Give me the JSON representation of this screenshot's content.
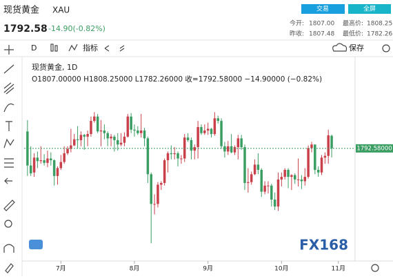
{
  "header": {
    "name": "现货黄金",
    "symbol": "XAU",
    "price": "1792.58",
    "change": "-14.90(-0.82%)",
    "buttons": [
      "交易",
      "全屏"
    ],
    "stats": [
      {
        "label": "今开:",
        "value": "1807.00"
      },
      {
        "label": "最高价:",
        "value": "1808.25"
      },
      {
        "label": "昨收:",
        "value": "1807.48"
      },
      {
        "label": "最低价:",
        "value": "1782.26"
      }
    ]
  },
  "toolbar": {
    "interval": "D",
    "indicators": "指标",
    "save": "保存"
  },
  "chart_data": {
    "type": "candlestick",
    "title": "现货黄金, 1D",
    "legend_text": "O1807.00000  H1808.25000  L1782.26000  收=1792.58000  −14.90000 (−0.82%)",
    "categories": [
      null,
      null,
      null,
      null,
      null,
      null,
      null,
      null,
      null,
      null,
      null,
      null,
      null,
      null,
      null,
      null,
      null,
      null,
      null,
      null,
      null,
      null,
      null,
      null,
      null,
      null,
      null,
      null,
      null,
      null,
      null,
      null,
      null,
      null,
      null,
      null,
      null,
      null,
      null,
      null,
      null,
      null,
      null,
      null,
      null,
      null,
      null,
      null,
      null,
      null,
      null,
      null,
      null,
      null,
      null,
      null,
      null,
      null,
      null,
      null,
      null,
      null,
      null,
      null,
      null,
      null,
      null,
      null,
      null,
      null,
      null,
      null,
      null,
      null,
      null,
      null,
      null,
      null,
      null,
      null,
      null,
      null,
      null,
      null,
      null,
      null,
      null,
      null,
      null,
      null,
      null,
      null
    ],
    "open": [
      1812,
      1773,
      1765,
      1782,
      1778,
      1779,
      1776,
      1781,
      1779,
      1761,
      1770,
      1777,
      1787,
      1792,
      1796,
      1803,
      1802,
      1808,
      1806,
      1809,
      1824,
      1829,
      1812,
      1813,
      1810,
      1804,
      1806,
      1802,
      1797,
      1799,
      1806,
      1829,
      1814,
      1813,
      1810,
      1813,
      1804,
      1763,
      1729,
      1729,
      1751,
      1753,
      1779,
      1787,
      1786,
      1787,
      1781,
      1781,
      1805,
      1802,
      1790,
      1794,
      1817,
      1810,
      1813,
      1815,
      1809,
      1827,
      1824,
      1795,
      1789,
      1795,
      1788,
      1794,
      1804,
      1794,
      1753,
      1754,
      1763,
      1774,
      1768,
      1743,
      1750,
      1750,
      1734,
      1726,
      1757,
      1760,
      1768,
      1760,
      1762,
      1757,
      1757,
      1755,
      1760,
      1793,
      1797,
      1768,
      1765,
      1782,
      1784,
      1807
    ],
    "high": [
      1825,
      1795,
      1787,
      1789,
      1795,
      1786,
      1790,
      1788,
      1780,
      1772,
      1785,
      1795,
      1795,
      1815,
      1809,
      1818,
      1812,
      1809,
      1813,
      1829,
      1834,
      1832,
      1825,
      1820,
      1812,
      1809,
      1808,
      1810,
      1810,
      1811,
      1832,
      1833,
      1820,
      1818,
      1832,
      1816,
      1806,
      1765,
      1740,
      1754,
      1755,
      1781,
      1789,
      1796,
      1794,
      1789,
      1785,
      1809,
      1810,
      1805,
      1797,
      1824,
      1820,
      1820,
      1822,
      1816,
      1834,
      1830,
      1827,
      1800,
      1801,
      1809,
      1796,
      1808,
      1808,
      1797,
      1770,
      1766,
      1780,
      1787,
      1770,
      1755,
      1755,
      1752,
      1742,
      1765,
      1765,
      1770,
      1770,
      1763,
      1764,
      1781,
      1762,
      1770,
      1796,
      1800,
      1797,
      1772,
      1785,
      1788,
      1814,
      1808.25
    ],
    "low": [
      1761,
      1761,
      1760,
      1770,
      1775,
      1773,
      1771,
      1773,
      1750,
      1751,
      1768,
      1775,
      1785,
      1788,
      1795,
      1793,
      1795,
      1791,
      1795,
      1806,
      1822,
      1810,
      1795,
      1803,
      1795,
      1795,
      1789,
      1790,
      1795,
      1795,
      1805,
      1810,
      1806,
      1808,
      1805,
      1795,
      1753,
      1684,
      1717,
      1725,
      1745,
      1750,
      1765,
      1780,
      1780,
      1772,
      1775,
      1777,
      1800,
      1780,
      1780,
      1781,
      1808,
      1808,
      1808,
      1805,
      1807,
      1821,
      1792,
      1782,
      1785,
      1787,
      1785,
      1780,
      1791,
      1745,
      1742,
      1751,
      1762,
      1763,
      1737,
      1740,
      1741,
      1726,
      1722,
      1721,
      1749,
      1757,
      1747,
      1745,
      1752,
      1749,
      1746,
      1750,
      1758,
      1788,
      1763,
      1760,
      1762,
      1775,
      1775,
      1782.26
    ],
    "close": [
      1773,
      1764,
      1782,
      1778,
      1779,
      1776,
      1781,
      1779,
      1761,
      1770,
      1777,
      1787,
      1792,
      1796,
      1803,
      1802,
      1808,
      1806,
      1809,
      1824,
      1829,
      1812,
      1813,
      1810,
      1804,
      1806,
      1802,
      1797,
      1799,
      1806,
      1829,
      1814,
      1813,
      1810,
      1813,
      1804,
      1763,
      1729,
      1729,
      1751,
      1753,
      1779,
      1787,
      1786,
      1787,
      1781,
      1781,
      1805,
      1802,
      1790,
      1794,
      1817,
      1810,
      1813,
      1815,
      1809,
      1827,
      1824,
      1795,
      1789,
      1795,
      1788,
      1794,
      1804,
      1794,
      1753,
      1754,
      1763,
      1774,
      1768,
      1743,
      1750,
      1750,
      1734,
      1726,
      1757,
      1760,
      1768,
      1760,
      1762,
      1757,
      1757,
      1755,
      1760,
      1793,
      1797,
      1768,
      1765,
      1782,
      1784,
      1807.48,
      1792.58
    ],
    "up_color": "#c9404a",
    "down_color": "#3a9e63",
    "ylim": [
      1670,
      1877
    ],
    "xlim": [
      -1,
      98
    ],
    "xticks": [
      {
        "value": 10,
        "label": "7月"
      },
      {
        "value": 32,
        "label": "8月"
      },
      {
        "value": 54,
        "label": "9月"
      },
      {
        "value": 76,
        "label": "10月"
      },
      {
        "value": 93,
        "label": "11月"
      }
    ],
    "last_price": {
      "value": 1792.58,
      "label": "1792.58000"
    },
    "watermark": "FX168"
  }
}
